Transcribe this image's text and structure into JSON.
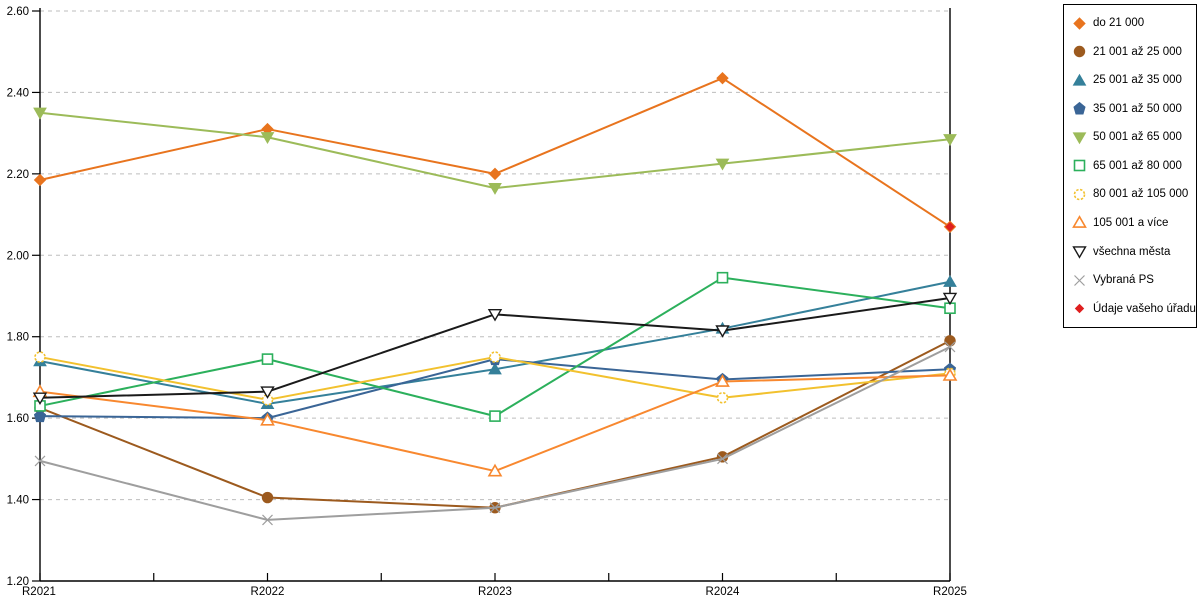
{
  "chart_data": {
    "type": "line",
    "title": "",
    "xlabel": "",
    "ylabel": "",
    "categories": [
      "R2021",
      "R2022",
      "R2023",
      "R2024",
      "R2025"
    ],
    "y_axis": {
      "min": 1.2,
      "max": 2.6,
      "step": 0.2,
      "tick_labels": [
        "2.60",
        "2.40",
        "2.20",
        "2.00",
        "1.80",
        "1.60",
        "1.40",
        "1.20"
      ]
    },
    "grid": "horizontal-dashed",
    "grid_color": "#bdbdbd",
    "axis_color": "#000000",
    "legend_position": "right-outside",
    "series": [
      {
        "name": "do 21 000",
        "color": "#E8741E",
        "marker": "diamond",
        "values": [
          2.185,
          2.31,
          2.2,
          2.435,
          2.07
        ]
      },
      {
        "name": "21 001 až 25 000",
        "color": "#9C5A1E",
        "marker": "circle",
        "values": [
          1.625,
          1.405,
          1.38,
          1.505,
          1.79
        ]
      },
      {
        "name": "25 001 až 35 000",
        "color": "#35809A",
        "marker": "triangle-up",
        "values": [
          1.74,
          1.635,
          1.72,
          1.82,
          1.935
        ]
      },
      {
        "name": "35 001 až 50 000",
        "color": "#3A6596",
        "marker": "pentagon",
        "values": [
          1.605,
          1.6,
          1.745,
          1.695,
          1.72
        ]
      },
      {
        "name": "50 001 až 65 000",
        "color": "#9CBB59",
        "marker": "triangle-down",
        "values": [
          2.35,
          2.29,
          2.165,
          2.225,
          2.285
        ]
      },
      {
        "name": "65 001 až 80 000",
        "color": "#2CB05C",
        "marker": "square-open",
        "values": [
          1.63,
          1.745,
          1.605,
          1.945,
          1.87
        ]
      },
      {
        "name": "80 001 až 105 000",
        "color": "#F2C12E",
        "marker": "circle-open-dashed",
        "values": [
          1.75,
          1.645,
          1.75,
          1.65,
          1.71
        ]
      },
      {
        "name": "105 001 a více",
        "color": "#F8882F",
        "marker": "triangle-open",
        "values": [
          1.665,
          1.595,
          1.47,
          1.69,
          1.705
        ]
      },
      {
        "name": "všechna města",
        "color": "#1A1A1A",
        "marker": "triangle-down-open",
        "values": [
          1.65,
          1.665,
          1.855,
          1.815,
          1.895
        ]
      },
      {
        "name": "Vybraná PS",
        "color": "#9E9E9E",
        "marker": "x",
        "values": [
          1.495,
          1.35,
          1.38,
          1.5,
          1.775
        ]
      },
      {
        "name": "Údaje vašeho úřadu",
        "color": "#DF1F1F",
        "marker": "diamond-small",
        "values": [
          null,
          null,
          null,
          null,
          2.07
        ]
      }
    ]
  }
}
